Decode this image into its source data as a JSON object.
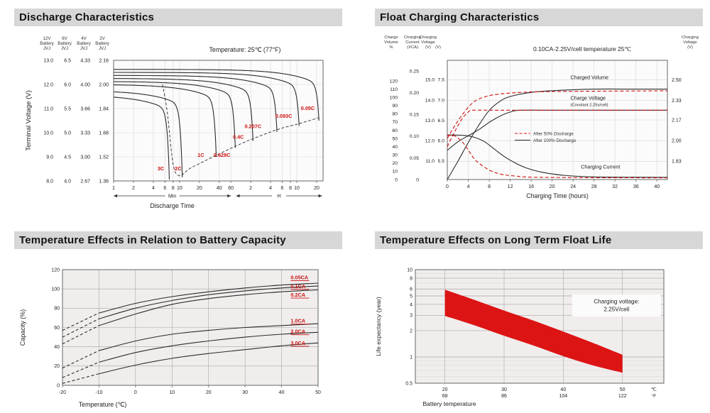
{
  "colors": {
    "page_bg": "#ffffff",
    "header_bg": "#d7d7d7",
    "header_text": "#141414",
    "text": "#222222",
    "muted_text": "#333333",
    "curve": "#2b2b2b",
    "red": "#cc1111",
    "band_red": "#dd1414",
    "grid_light": "#d8d4d4",
    "grid_mid": "#aaa5a5",
    "plot_bg_light": "#fcfbfb",
    "plot_bg_gray": "#f1eded",
    "axis": "#666666"
  },
  "headers": {
    "discharge": "Discharge Characteristics",
    "float_charging": "Float Charging Characteristics",
    "capacity": "Temperature Effects in Relation to Battery Capacity",
    "float_life": "Temperature Effects on Long Term Float Life"
  },
  "chart_data": [
    {
      "type": "line",
      "id": "discharge",
      "title": "Discharge Characteristics",
      "note": "Temperature: 25℃ (77°F)",
      "ylabel": "Terminal Voltage (V)",
      "xlabel": "Discharge Time",
      "x_scale": "log",
      "x_domain_minutes": [
        1,
        1500
      ],
      "x_ticks_minutes": [
        1,
        2,
        4,
        6,
        8,
        10,
        20,
        40,
        60
      ],
      "x_ticks_hours": [
        2,
        4,
        6,
        8,
        10,
        20
      ],
      "x_unit_groups": [
        "Min",
        "H"
      ],
      "y_domain_cell": [
        2.16,
        1.36
      ],
      "voltage_columns": [
        {
          "header": [
            "12V",
            "Battery",
            "JVJ"
          ],
          "ticks": [
            "13.0",
            "12.0",
            "11.0",
            "10.0",
            "9.0",
            "8.0"
          ]
        },
        {
          "header": [
            "6V",
            "Battery",
            "JVJ"
          ],
          "ticks": [
            "6.5",
            "6.0",
            "5.5",
            "5.0",
            "4.5",
            "4.0"
          ]
        },
        {
          "header": [
            "4V",
            "Battery",
            "JVJ"
          ],
          "ticks": [
            "4.33",
            "4.00",
            "3.66",
            "3.33",
            "3.00",
            "2.67"
          ]
        },
        {
          "header": [
            "2V",
            "Battery",
            "JVJ"
          ],
          "ticks": [
            "2.16",
            "2.00",
            "1.84",
            "1.68",
            "1.52",
            "1.36"
          ]
        }
      ],
      "curves": [
        {
          "label": "3C",
          "end_min": 7,
          "v_plateau": 1.93,
          "v_end": 1.37,
          "label_at": [
            5.2,
            1.43
          ]
        },
        {
          "label": "2C",
          "end_min": 11,
          "v_plateau": 1.96,
          "v_end": 1.385,
          "label_at": [
            9.5,
            1.43
          ]
        },
        {
          "label": "1C",
          "end_min": 36,
          "v_plateau": 2.0,
          "v_end": 1.52,
          "label_at": [
            21,
            1.52
          ]
        },
        {
          "label": "0.628C",
          "end_min": 70,
          "v_plateau": 2.02,
          "v_end": 1.58,
          "label_at": [
            44,
            1.52
          ]
        },
        {
          "label": "0.4C",
          "end_min": 130,
          "v_plateau": 2.04,
          "v_end": 1.625,
          "label_at": [
            78,
            1.64
          ]
        },
        {
          "label": "0.207C",
          "end_min": 300,
          "v_plateau": 2.06,
          "v_end": 1.685,
          "label_at": [
            130,
            1.71
          ]
        },
        {
          "label": "0.093C",
          "end_min": 650,
          "v_plateau": 2.08,
          "v_end": 1.725,
          "label_at": [
            380,
            1.78
          ]
        },
        {
          "label": "0.05C",
          "end_min": 1300,
          "v_plateau": 2.1,
          "v_end": 1.76,
          "label_at": [
            880,
            1.83
          ]
        }
      ],
      "cutoff_locus": [
        [
          5.5,
          2.0
        ],
        [
          6.5,
          1.82
        ],
        [
          8,
          1.47
        ],
        [
          10,
          1.395
        ],
        [
          14,
          1.44
        ],
        [
          20,
          1.475
        ],
        [
          36,
          1.53
        ],
        [
          70,
          1.59
        ],
        [
          130,
          1.64
        ],
        [
          300,
          1.7
        ],
        [
          650,
          1.74
        ],
        [
          1300,
          1.78
        ]
      ]
    },
    {
      "type": "line",
      "id": "float_charging",
      "title": "Float Charging Characteristics",
      "note": "0.10CA-2.25V/cell  temperature 25℃",
      "xlabel": "Charging Time (hours)",
      "x_domain": [
        0,
        42
      ],
      "x_ticks": [
        0,
        4,
        8,
        12,
        16,
        20,
        24,
        28,
        32,
        36,
        40
      ],
      "scales": {
        "volume": [
          0,
          145
        ],
        "current": [
          0,
          0.275
        ],
        "cell_voltage": [
          1.68,
          2.66
        ]
      },
      "left_columns": [
        {
          "header": [
            "Charge",
            "Volume",
            "%"
          ],
          "scale": "volume",
          "ticks": [
            "120",
            "110",
            "100",
            "90",
            "80",
            "70",
            "60",
            "50",
            "40",
            "30",
            "20",
            "10",
            "0"
          ]
        },
        {
          "header": [
            "Charging",
            "Current",
            "(XCA)"
          ],
          "scale": "current",
          "ticks": [
            "0.25",
            "0.20",
            "0.15",
            "0.10",
            "0.05",
            "0"
          ]
        },
        {
          "header": [
            "Charging",
            "Voltage",
            "(V)"
          ],
          "scale": "voltage12",
          "ticks": [
            "15.0",
            "14.0",
            "13.0",
            "12.0",
            "11.0"
          ]
        },
        {
          "header": [
            "",
            "",
            "(V)"
          ],
          "scale": "voltage6",
          "ticks": [
            "7.5",
            "7.0",
            "6.5",
            "6.0",
            "5.5"
          ]
        }
      ],
      "right_axis": {
        "header": [
          "Charging",
          "Voltage",
          "(V)"
        ],
        "ticks": [
          "2.50",
          "2.33",
          "2.17",
          "2.00",
          "1.83"
        ]
      },
      "series": [
        {
          "name": "Charged Volume",
          "condition": "After 100% Discharge",
          "style": "solid",
          "scale": "volume",
          "points": [
            [
              0,
              0
            ],
            [
              2,
              22
            ],
            [
              4,
              45
            ],
            [
              6,
              66
            ],
            [
              8,
              84
            ],
            [
              10,
              95
            ],
            [
              12,
              101
            ],
            [
              16,
              106
            ],
            [
              20,
              108
            ],
            [
              28,
              110
            ],
            [
              36,
              110
            ],
            [
              42,
              110
            ]
          ]
        },
        {
          "name": "Charged Volume",
          "condition": "After 50% Discharge",
          "style": "dashed",
          "scale": "volume",
          "points": [
            [
              0,
              50
            ],
            [
              1,
              61
            ],
            [
              2,
              71
            ],
            [
              3,
              80
            ],
            [
              4,
              88
            ],
            [
              5,
              94
            ],
            [
              6,
              98
            ],
            [
              8,
              102
            ],
            [
              10,
              104
            ],
            [
              14,
              106
            ],
            [
              20,
              107
            ],
            [
              42,
              108
            ]
          ]
        },
        {
          "name": "Charge Voltage",
          "condition": "After 100% Discharge",
          "style": "solid",
          "scale": "cell",
          "points": [
            [
              0,
              1.92
            ],
            [
              2,
              1.99
            ],
            [
              4,
              2.04
            ],
            [
              6,
              2.09
            ],
            [
              8,
              2.15
            ],
            [
              10,
              2.2
            ],
            [
              12,
              2.235
            ],
            [
              14,
              2.25
            ],
            [
              20,
              2.25
            ],
            [
              42,
              2.25
            ]
          ]
        },
        {
          "name": "Charge Voltage",
          "condition": "After 50% Discharge",
          "style": "dashed",
          "scale": "cell",
          "points": [
            [
              0,
              1.95
            ],
            [
              1,
              2.04
            ],
            [
              2,
              2.12
            ],
            [
              3,
              2.19
            ],
            [
              4,
              2.235
            ],
            [
              5,
              2.25
            ],
            [
              10,
              2.25
            ],
            [
              42,
              2.25
            ]
          ]
        },
        {
          "name": "Charging Current",
          "condition": "After 100% Discharge",
          "style": "solid",
          "scale": "current",
          "points": [
            [
              0,
              0.103
            ],
            [
              3,
              0.102
            ],
            [
              5,
              0.098
            ],
            [
              7,
              0.088
            ],
            [
              9,
              0.07
            ],
            [
              11,
              0.052
            ],
            [
              13,
              0.038
            ],
            [
              15,
              0.027
            ],
            [
              18,
              0.017
            ],
            [
              22,
              0.01
            ],
            [
              28,
              0.006
            ],
            [
              42,
              0.005
            ]
          ]
        },
        {
          "name": "Charging Current",
          "condition": "After 50% Discharge",
          "style": "dashed",
          "scale": "current",
          "points": [
            [
              0,
              0.102
            ],
            [
              1.5,
              0.1
            ],
            [
              3,
              0.085
            ],
            [
              4,
              0.068
            ],
            [
              5,
              0.05
            ],
            [
              6,
              0.038
            ],
            [
              8,
              0.022
            ],
            [
              10,
              0.013
            ],
            [
              13,
              0.008
            ],
            [
              18,
              0.005
            ],
            [
              42,
              0.004
            ]
          ]
        }
      ],
      "curve_labels": [
        {
          "text": "Charged Volume",
          "scale": "volume",
          "x": 23.5,
          "y": 122,
          "fs": 7.2
        },
        {
          "text": "Charge Voltage",
          "scale": "cell",
          "x": 23.5,
          "y": 2.335,
          "fs": 7.2
        },
        {
          "text": "(Constant 2.25v/cell)",
          "scale": "cell",
          "x": 23.5,
          "y": 2.285,
          "fs": 5.8
        },
        {
          "text": "Charging Current",
          "scale": "current",
          "x": 25.5,
          "y": 0.025,
          "fs": 7.2
        }
      ],
      "legend": [
        {
          "style": "dashed",
          "label": "After  50% Discharge"
        },
        {
          "style": "solid",
          "label": "After 100% Discharge"
        }
      ]
    },
    {
      "type": "line",
      "id": "capacity",
      "title": "Temperature Effects in Relation to Battery Capacity",
      "xlabel": "Temperature (℃)",
      "ylabel": "Capacity (%)",
      "x_domain": [
        -20,
        50
      ],
      "y_domain": [
        0,
        120
      ],
      "x_ticks": [
        -20,
        -10,
        0,
        10,
        20,
        30,
        40,
        50
      ],
      "y_ticks": [
        0,
        20,
        40,
        60,
        80,
        100,
        120
      ],
      "temps": [
        -20,
        -10,
        0,
        10,
        20,
        30,
        40,
        50
      ],
      "series": [
        {
          "label": "0.05CA",
          "values": [
            57,
            75,
            85,
            92,
            97,
            101,
            104,
            106
          ],
          "label_at": [
            42.5,
            110
          ]
        },
        {
          "label": "0.1CA",
          "values": [
            50,
            69,
            80,
            88,
            94,
            98,
            101,
            103
          ],
          "label_at": [
            42.5,
            101
          ]
        },
        {
          "label": "0.2CA",
          "values": [
            43,
            62,
            74,
            84,
            90,
            94,
            97,
            99
          ],
          "label_at": [
            42.5,
            92
          ]
        },
        {
          "label": "1.0CA",
          "values": [
            18,
            36,
            46,
            53,
            57,
            60,
            62,
            64
          ],
          "label_at": [
            42.5,
            65
          ]
        },
        {
          "label": "2.0CA",
          "values": [
            8,
            24,
            34,
            41,
            46,
            50,
            53,
            55
          ],
          "label_at": [
            42.5,
            54
          ]
        },
        {
          "label": "3.0CA",
          "values": [
            2,
            12,
            21,
            28,
            33,
            37,
            41,
            44
          ],
          "label_at": [
            42.5,
            42
          ]
        }
      ]
    },
    {
      "type": "band",
      "id": "float_life",
      "title": "Temperature Effects on Long Term Float Life",
      "xlabel": "Battery temperature",
      "ylabel": "Life expectancy (year)",
      "x_domain": [
        15,
        57
      ],
      "y_domain": [
        0.5,
        10
      ],
      "y_scale": "log",
      "x_ticks": [
        {
          "c": "20",
          "f": "68"
        },
        {
          "c": "30",
          "f": "86"
        },
        {
          "c": "40",
          "f": "104"
        },
        {
          "c": "50",
          "f": "122"
        }
      ],
      "x_unit": {
        "c": "℃",
        "f": "°F"
      },
      "y_ticks": [
        "10",
        "8",
        "6",
        "5",
        "4",
        "3",
        "2",
        "1",
        "0.5"
      ],
      "y_minor_ticks": [
        0.6,
        0.7,
        0.8,
        0.9,
        7,
        9
      ],
      "band_upper": [
        [
          20,
          5.9
        ],
        [
          25,
          4.5
        ],
        [
          30,
          3.4
        ],
        [
          35,
          2.6
        ],
        [
          40,
          1.95
        ],
        [
          45,
          1.45
        ],
        [
          50,
          1.06
        ]
      ],
      "band_lower": [
        [
          20,
          2.95
        ],
        [
          25,
          2.3
        ],
        [
          30,
          1.75
        ],
        [
          35,
          1.35
        ],
        [
          40,
          1.02
        ],
        [
          45,
          0.8
        ],
        [
          50,
          0.66
        ]
      ],
      "annotation": [
        "Charging voltage:",
        "2.25V/cell"
      ]
    }
  ]
}
